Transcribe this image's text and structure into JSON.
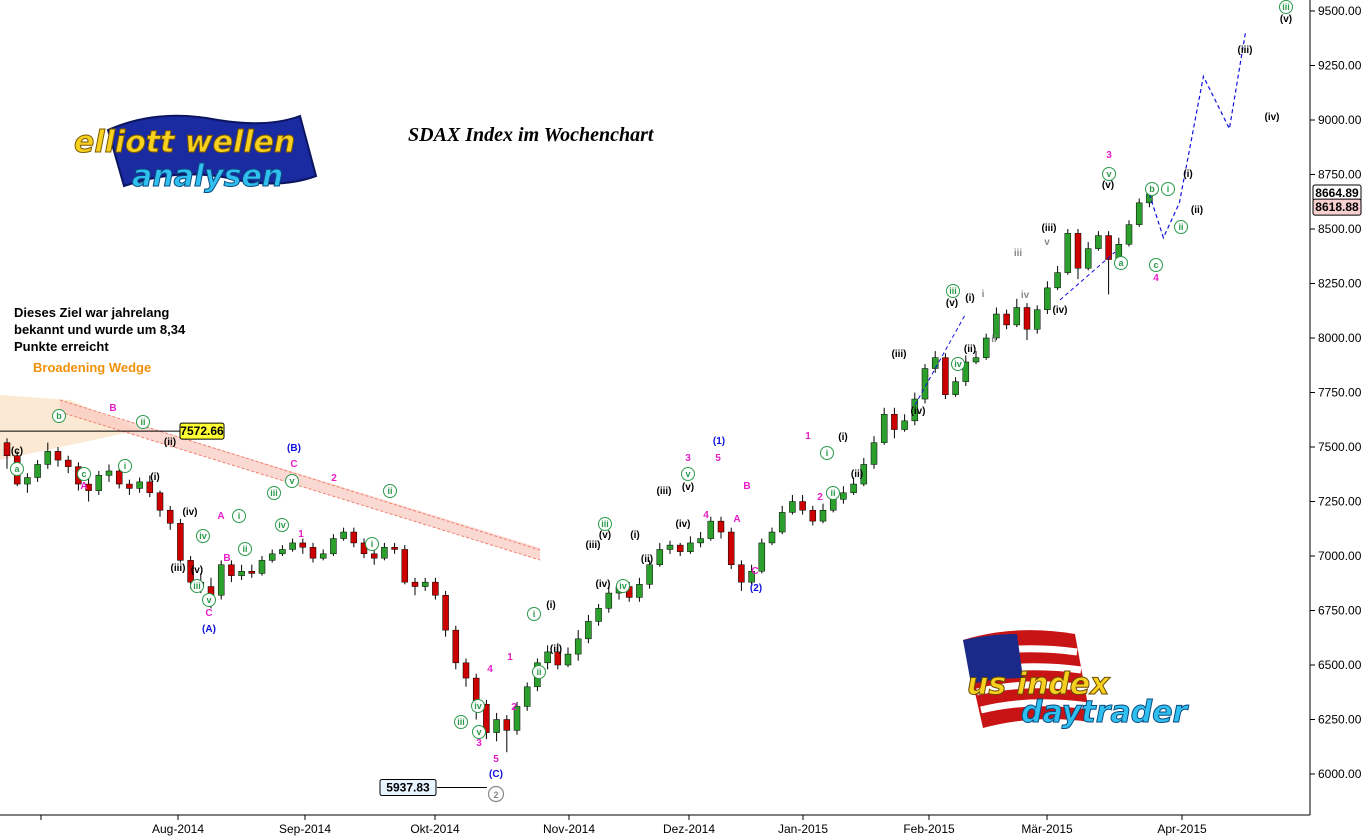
{
  "chart_title": "SDAX Index im Wochenchart",
  "note_text": "Dieses Ziel war jahrelang bekannt und wurde um 8,34 Punkte erreicht",
  "pattern_label": "Broadening Wedge",
  "target_price_label": "7572.66",
  "low_price_label": "5937.83",
  "current_price_label": "8664.89",
  "secondary_price_label": "8618.88",
  "logo_top": [
    "elliott wellen",
    "analysen"
  ],
  "logo_bottom": [
    "us index",
    "daytrader"
  ],
  "colors": {
    "up": "#2ca02c",
    "down": "#cc0000",
    "magenta": "#e61ec8",
    "blue": "#1010dd",
    "green_circle": "#2a9a4a",
    "black": "#000000",
    "grey": "#888888",
    "forecast": "#1010dd",
    "wedge": "#f08070"
  },
  "chart_data": {
    "type": "candlestick",
    "title": "SDAX Index im Wochenchart",
    "price_axis": {
      "position": "right",
      "range": [
        5850,
        9600
      ],
      "ticks": [
        "6000.00",
        "6250.00",
        "6500.00",
        "6750.00",
        "7000.00",
        "7250.00",
        "7500.00",
        "7750.00",
        "8000.00",
        "8250.00",
        "8500.00",
        "8750.00",
        "9000.00",
        "9250.00",
        "9500.00"
      ]
    },
    "x_axis": {
      "labels": [
        "Aug-2014",
        "Sep-2014",
        "Okt-2014",
        "Nov-2014",
        "Dez-2014",
        "Jan-2015",
        "Feb-2015",
        "Mär-2015",
        "Apr-2015"
      ]
    },
    "candles": [
      [
        7520,
        7460,
        7540,
        7400
      ],
      [
        7460,
        7330,
        7480,
        7320
      ],
      [
        7330,
        7360,
        7380,
        7290
      ],
      [
        7360,
        7420,
        7440,
        7340
      ],
      [
        7420,
        7480,
        7520,
        7400
      ],
      [
        7480,
        7440,
        7500,
        7410
      ],
      [
        7440,
        7410,
        7460,
        7380
      ],
      [
        7410,
        7330,
        7430,
        7300
      ],
      [
        7330,
        7300,
        7360,
        7250
      ],
      [
        7300,
        7370,
        7390,
        7280
      ],
      [
        7370,
        7390,
        7420,
        7340
      ],
      [
        7390,
        7330,
        7410,
        7310
      ],
      [
        7330,
        7310,
        7350,
        7280
      ],
      [
        7310,
        7340,
        7360,
        7290
      ],
      [
        7340,
        7290,
        7370,
        7270
      ],
      [
        7290,
        7210,
        7300,
        7180
      ],
      [
        7210,
        7150,
        7230,
        7120
      ],
      [
        7150,
        6980,
        7170,
        6970
      ],
      [
        6980,
        6880,
        7000,
        6850
      ],
      [
        6880,
        6860,
        6920,
        6830
      ],
      [
        6860,
        6820,
        6900,
        6760
      ],
      [
        6820,
        6960,
        6980,
        6800
      ],
      [
        6960,
        6910,
        6980,
        6880
      ],
      [
        6910,
        6930,
        6960,
        6890
      ],
      [
        6930,
        6920,
        6960,
        6900
      ],
      [
        6920,
        6980,
        7000,
        6910
      ],
      [
        6980,
        7010,
        7030,
        6970
      ],
      [
        7010,
        7030,
        7050,
        7000
      ],
      [
        7030,
        7060,
        7080,
        7020
      ],
      [
        7060,
        7040,
        7080,
        7010
      ],
      [
        7040,
        6990,
        7060,
        6970
      ],
      [
        6990,
        7010,
        7030,
        6980
      ],
      [
        7010,
        7080,
        7100,
        7000
      ],
      [
        7080,
        7110,
        7130,
        7070
      ],
      [
        7110,
        7060,
        7130,
        7040
      ],
      [
        7060,
        7010,
        7080,
        6990
      ],
      [
        7010,
        6990,
        7030,
        6960
      ],
      [
        6990,
        7040,
        7060,
        6980
      ],
      [
        7040,
        7030,
        7060,
        7010
      ],
      [
        7030,
        6880,
        7050,
        6870
      ],
      [
        6880,
        6860,
        6900,
        6820
      ],
      [
        6860,
        6880,
        6900,
        6840
      ],
      [
        6880,
        6820,
        6900,
        6800
      ],
      [
        6820,
        6660,
        6840,
        6630
      ],
      [
        6660,
        6510,
        6680,
        6480
      ],
      [
        6510,
        6440,
        6530,
        6400
      ],
      [
        6440,
        6320,
        6460,
        6250
      ],
      [
        6320,
        6190,
        6340,
        6160
      ],
      [
        6190,
        6250,
        6280,
        6150
      ],
      [
        6250,
        6200,
        6270,
        6100
      ],
      [
        6200,
        6310,
        6330,
        6180
      ],
      [
        6310,
        6400,
        6420,
        6290
      ],
      [
        6400,
        6510,
        6530,
        6380
      ],
      [
        6510,
        6560,
        6590,
        6480
      ],
      [
        6560,
        6500,
        6600,
        6480
      ],
      [
        6500,
        6550,
        6580,
        6490
      ],
      [
        6550,
        6620,
        6660,
        6520
      ],
      [
        6620,
        6700,
        6730,
        6600
      ],
      [
        6700,
        6760,
        6780,
        6680
      ],
      [
        6760,
        6830,
        6860,
        6740
      ],
      [
        6830,
        6860,
        6880,
        6800
      ],
      [
        6860,
        6810,
        6880,
        6790
      ],
      [
        6810,
        6870,
        6900,
        6790
      ],
      [
        6870,
        6960,
        6980,
        6850
      ],
      [
        6960,
        7030,
        7060,
        6950
      ],
      [
        7030,
        7050,
        7070,
        7010
      ],
      [
        7050,
        7020,
        7060,
        7000
      ],
      [
        7020,
        7060,
        7090,
        7010
      ],
      [
        7060,
        7080,
        7110,
        7040
      ],
      [
        7080,
        7160,
        7180,
        7070
      ],
      [
        7160,
        7110,
        7180,
        7080
      ],
      [
        7110,
        6960,
        7130,
        6940
      ],
      [
        6960,
        6880,
        6980,
        6840
      ],
      [
        6880,
        6930,
        6960,
        6870
      ],
      [
        6930,
        7060,
        7080,
        6920
      ],
      [
        7060,
        7110,
        7130,
        7050
      ],
      [
        7110,
        7200,
        7230,
        7100
      ],
      [
        7200,
        7250,
        7280,
        7190
      ],
      [
        7250,
        7210,
        7280,
        7190
      ],
      [
        7210,
        7160,
        7230,
        7140
      ],
      [
        7160,
        7210,
        7240,
        7150
      ],
      [
        7210,
        7260,
        7280,
        7200
      ],
      [
        7260,
        7290,
        7320,
        7240
      ],
      [
        7290,
        7330,
        7360,
        7280
      ],
      [
        7330,
        7420,
        7450,
        7320
      ],
      [
        7420,
        7520,
        7550,
        7400
      ],
      [
        7520,
        7650,
        7680,
        7510
      ],
      [
        7650,
        7580,
        7680,
        7540
      ],
      [
        7580,
        7620,
        7650,
        7570
      ],
      [
        7620,
        7720,
        7750,
        7600
      ],
      [
        7720,
        7860,
        7880,
        7700
      ],
      [
        7860,
        7910,
        7940,
        7840
      ],
      [
        7910,
        7740,
        7930,
        7720
      ],
      [
        7740,
        7800,
        7820,
        7730
      ],
      [
        7800,
        7890,
        7920,
        7780
      ],
      [
        7890,
        7910,
        7940,
        7880
      ],
      [
        7910,
        8000,
        8020,
        7900
      ],
      [
        8000,
        8110,
        8140,
        7990
      ],
      [
        8110,
        8060,
        8130,
        8040
      ],
      [
        8060,
        8140,
        8180,
        8050
      ],
      [
        8140,
        8040,
        8160,
        7990
      ],
      [
        8040,
        8130,
        8150,
        8020
      ],
      [
        8130,
        8230,
        8260,
        8110
      ],
      [
        8230,
        8300,
        8330,
        8220
      ],
      [
        8300,
        8480,
        8500,
        8290
      ],
      [
        8480,
        8320,
        8500,
        8270
      ],
      [
        8320,
        8410,
        8440,
        8310
      ],
      [
        8410,
        8470,
        8490,
        8400
      ],
      [
        8470,
        8360,
        8490,
        8200
      ],
      [
        8360,
        8430,
        8460,
        8350
      ],
      [
        8430,
        8520,
        8540,
        8420
      ],
      [
        8520,
        8620,
        8640,
        8510
      ],
      [
        8620,
        8660,
        8680,
        8600
      ]
    ],
    "forecast_path": [
      [
        8460,
        "(ii)"
      ],
      [
        8620,
        ""
      ],
      [
        9200,
        "(iii)"
      ],
      [
        8960,
        "(iv)"
      ],
      [
        9400,
        "(v)"
      ]
    ],
    "wave_labels": [
      "(A)",
      "(B)",
      "(C)",
      "(1)",
      "(2)",
      "A",
      "B",
      "C",
      "1",
      "2",
      "3",
      "4",
      "5",
      "i",
      "ii",
      "iii",
      "iv",
      "v",
      "(i)",
      "(ii)",
      "(iii)",
      "(iv)",
      "(v)",
      "a",
      "b",
      "c"
    ]
  }
}
